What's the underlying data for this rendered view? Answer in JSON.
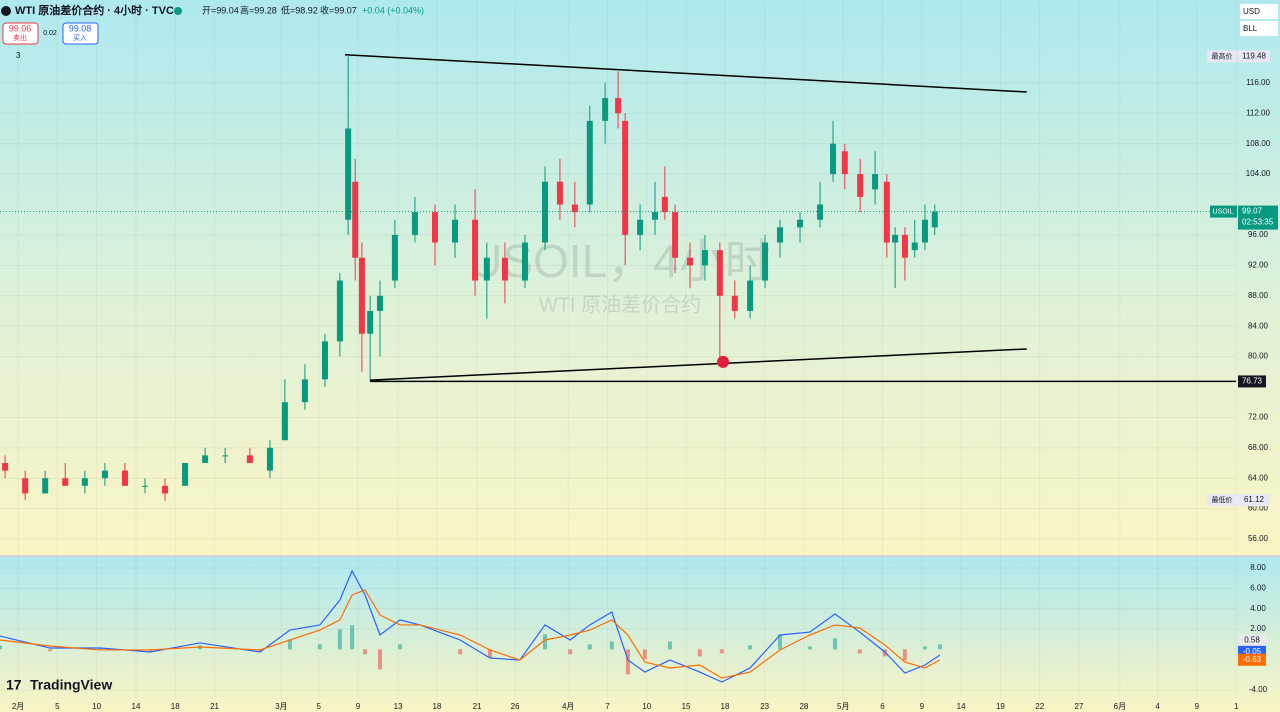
{
  "header": {
    "symbol": "WTI 原油差价合约 · 4小时 · TVC",
    "open": "开=99.04",
    "high": "高=99.28",
    "low": "低=98.92",
    "close": "收=99.07",
    "change": "+0.04 (+0.04%)",
    "sell_price": "99.06",
    "sell": "卖出",
    "spread": "0.02",
    "buy_price": "99.08",
    "buy": "买入",
    "indicators": "3",
    "currency": "USD",
    "unit": "BLL",
    "logo": "TradingView"
  },
  "chart_data": [
    {
      "type": "candlestick",
      "up_color": "#089981",
      "down_color": "#f23645",
      "x": [
        -0.33,
        0.18,
        0.69,
        1.2,
        1.7,
        2.21,
        2.72,
        3.23,
        3.74,
        4.25,
        4.76,
        5.27,
        5.9,
        6.41,
        6.79,
        7.3,
        7.81,
        8.19,
        8.4,
        8.58,
        8.75,
        8.96,
        9.21,
        9.59,
        10.1,
        10.61,
        11.12,
        11.63,
        11.93,
        12.39,
        12.9,
        13.41,
        13.79,
        14.17,
        14.55,
        14.94,
        15.27,
        15.45,
        15.83,
        16.21,
        16.46,
        16.72,
        17.1,
        17.48,
        17.86,
        18.24,
        18.63,
        19.01,
        19.39,
        19.9,
        20.41,
        20.74,
        21.04,
        21.43,
        21.81,
        22.11,
        22.32,
        22.57,
        22.82,
        23.08,
        23.33
      ],
      "open": [
        66,
        64,
        62,
        64,
        63,
        64,
        65,
        63,
        63,
        63,
        66,
        67,
        67,
        65,
        69,
        74,
        77,
        82,
        98,
        103,
        93,
        83,
        86,
        90,
        96,
        99,
        95,
        98,
        90,
        93,
        90,
        95,
        103,
        100,
        100,
        111,
        114,
        111,
        96,
        98,
        101,
        99,
        93,
        92,
        94,
        88,
        86,
        90,
        95,
        97,
        98,
        104,
        107,
        104,
        102,
        103,
        95,
        96,
        94,
        95,
        97
      ],
      "high": [
        67,
        65,
        65,
        66,
        65,
        66,
        66,
        64,
        64,
        66,
        68,
        68,
        68,
        69,
        77,
        79,
        83,
        91,
        119.48,
        106,
        95,
        88,
        90,
        98,
        101,
        100,
        100,
        102,
        95,
        95,
        96,
        105,
        106,
        103,
        113,
        116,
        117.5,
        112,
        100,
        103,
        105,
        100,
        95,
        96,
        95,
        90,
        92,
        96,
        98,
        99,
        103,
        111,
        108,
        106,
        107,
        104,
        97,
        97,
        98,
        100,
        100
      ],
      "low": [
        64,
        61.12,
        62,
        63,
        62,
        63,
        63,
        62,
        61,
        63,
        66,
        66,
        66,
        64,
        69,
        73,
        76,
        80,
        96,
        90,
        78,
        76.73,
        80,
        89,
        95,
        92,
        93,
        88,
        85,
        87,
        89,
        94,
        98,
        97,
        99,
        108,
        110,
        92,
        94,
        96,
        98,
        91,
        89,
        90,
        79,
        85,
        85,
        89,
        93,
        95,
        97,
        103,
        102,
        99,
        100,
        93,
        89,
        90,
        93,
        94,
        96
      ],
      "close": [
        65,
        62,
        64,
        63,
        64,
        65,
        63,
        63,
        62,
        66,
        67,
        67,
        66,
        68,
        74,
        77,
        82,
        90,
        110,
        93,
        83,
        86,
        88,
        96,
        99,
        95,
        98,
        90,
        93,
        90,
        95,
        103,
        100,
        99,
        111,
        114,
        112,
        96,
        98,
        99,
        99,
        93,
        92,
        94,
        88,
        86,
        90,
        95,
        97,
        98,
        100,
        108,
        104,
        101,
        104,
        95,
        96,
        93,
        95,
        98,
        99.07
      ],
      "xlim": [
        -0.46,
        30.97
      ],
      "ylim": [
        53.9,
        126.9
      ],
      "yticks": [
        {
          "value": 56,
          "label": "56.00"
        },
        {
          "value": 60,
          "label": "60.00"
        },
        {
          "value": 64,
          "label": "64.00"
        },
        {
          "value": 68,
          "label": "68.00"
        },
        {
          "value": 72,
          "label": "72.00"
        },
        {
          "value": 80,
          "label": "80.00"
        },
        {
          "value": 84,
          "label": "84.00"
        },
        {
          "value": 88,
          "label": "88.00"
        },
        {
          "value": 92,
          "label": "92.00"
        },
        {
          "value": 96,
          "label": "96.00"
        },
        {
          "value": 104,
          "label": "104.00"
        },
        {
          "value": 108,
          "label": "108.00"
        },
        {
          "value": 112,
          "label": "112.00"
        },
        {
          "value": 116,
          "label": "116.00"
        }
      ],
      "watermark": [
        "USOIL，4小时",
        "WTI 原油差价合约"
      ],
      "trendlines": [
        {
          "x": [
            8.32,
            25.67
          ],
          "y": [
            119.7,
            114.8
          ]
        },
        {
          "x": [
            8.96,
            25.67
          ],
          "y": [
            76.9,
            81.0
          ]
        }
      ],
      "hline": {
        "x": 8.96,
        "value": 76.73
      },
      "marker": {
        "x": 17.94,
        "y": 79.3
      },
      "high_label": {
        "name": "最高价",
        "value": 119.48
      },
      "low_label": {
        "name": "最低价",
        "value": 61.12
      },
      "last": {
        "name": "USOIL",
        "value": 99.07,
        "countdown": "02:53:35"
      }
    },
    {
      "type": "macd",
      "x": [
        -0.46,
        0.81,
        2.09,
        3.36,
        4.63,
        6.16,
        6.92,
        7.68,
        8.19,
        8.5,
        8.83,
        9.21,
        9.72,
        10.23,
        11.25,
        12.01,
        12.77,
        13.41,
        14.05,
        14.55,
        15.11,
        15.52,
        15.95,
        16.59,
        17.35,
        17.91,
        18.63,
        19.39,
        20.15,
        20.79,
        21.42,
        22.06,
        22.57,
        23.08,
        23.46
      ],
      "series": [
        {
          "color": "#2962ff",
          "values": [
            1.31,
            0.13,
            0.13,
            -0.26,
            0.63,
            -0.26,
            1.9,
            2.4,
            4.85,
            7.71,
            5.35,
            1.41,
            2.89,
            2.4,
            0.92,
            -0.85,
            -1.05,
            2.4,
            0.92,
            2.4,
            3.67,
            -1.05,
            -2.23,
            -1.05,
            -2.23,
            -3.21,
            -1.83,
            1.41,
            1.7,
            3.48,
            1.7,
            -0.26,
            -2.33,
            -1.54,
            -0.55
          ]
        },
        {
          "color": "#ff6d00",
          "values": [
            0.92,
            0.33,
            -0.06,
            -0.06,
            0.23,
            -0.06,
            0.92,
            1.9,
            2.89,
            5.35,
            5.84,
            3.38,
            2.4,
            2.4,
            1.41,
            -0.06,
            -1.05,
            0.92,
            1.41,
            1.9,
            2.89,
            1.41,
            -1.25,
            -1.83,
            -1.54,
            -2.82,
            -2.23,
            -0.06,
            1.41,
            2.4,
            2.11,
            0.43,
            -1.25,
            -1.83,
            -1.05
          ]
        }
      ],
      "histogram": [
        0.39,
        -0.2,
        0.19,
        -0.2,
        0.4,
        -0.2,
        0.98,
        0.5,
        1.96,
        2.36,
        -0.49,
        -1.97,
        0.49,
        0,
        -0.49,
        -0.79,
        0,
        1.48,
        -0.49,
        0.5,
        0.78,
        -2.46,
        -0.98,
        0.78,
        -0.69,
        -0.39,
        0.4,
        1.47,
        0.29,
        1.08,
        -0.41,
        -0.69,
        -1.08,
        0.29,
        0.5
      ],
      "last_labels": [
        {
          "value": 0.58,
          "color": "#e8e8ee"
        },
        {
          "value": -0.05,
          "color": "#2962ff"
        },
        {
          "value": -0.63,
          "color": "#ff6d00"
        }
      ],
      "xlim": [
        -0.46,
        30.97
      ],
      "ylim": [
        -4.98,
        9.08
      ],
      "yticks": [
        {
          "value": 8,
          "label": "8.00"
        },
        {
          "value": 6,
          "label": "6.00"
        },
        {
          "value": 4,
          "label": "4.00"
        },
        {
          "value": 2,
          "label": "2.00"
        },
        {
          "value": -4,
          "label": "-4.00"
        }
      ],
      "xticks": [
        {
          "value": 0,
          "label": "2月"
        },
        {
          "value": 1,
          "label": "5"
        },
        {
          "value": 2,
          "label": "10"
        },
        {
          "value": 3,
          "label": "14"
        },
        {
          "value": 4,
          "label": "18"
        },
        {
          "value": 5,
          "label": "21"
        },
        {
          "value": 6.7,
          "label": "3月"
        },
        {
          "value": 7.65,
          "label": "5"
        },
        {
          "value": 8.65,
          "label": "9"
        },
        {
          "value": 9.67,
          "label": "13"
        },
        {
          "value": 10.66,
          "label": "18"
        },
        {
          "value": 11.68,
          "label": "21"
        },
        {
          "value": 12.65,
          "label": "26"
        },
        {
          "value": 14,
          "label": "4月"
        },
        {
          "value": 15,
          "label": "7"
        },
        {
          "value": 16,
          "label": "10"
        },
        {
          "value": 17,
          "label": "15"
        },
        {
          "value": 17.99,
          "label": "18"
        },
        {
          "value": 19,
          "label": "23"
        },
        {
          "value": 20,
          "label": "28"
        },
        {
          "value": 21,
          "label": "5月"
        },
        {
          "value": 22,
          "label": "6"
        },
        {
          "value": 23,
          "label": "9"
        },
        {
          "value": 24,
          "label": "14"
        },
        {
          "value": 25,
          "label": "19"
        },
        {
          "value": 26,
          "label": "22"
        },
        {
          "value": 27,
          "label": "27"
        },
        {
          "value": 28.04,
          "label": "6月"
        },
        {
          "value": 29,
          "label": "4"
        },
        {
          "value": 30,
          "label": "9"
        },
        {
          "value": 31,
          "label": "1"
        }
      ]
    }
  ]
}
